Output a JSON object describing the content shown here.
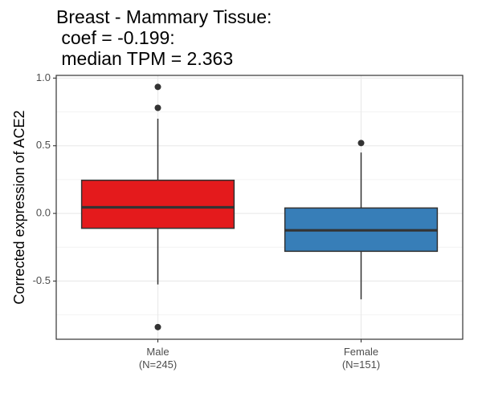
{
  "chart_data": {
    "type": "box",
    "title_lines": [
      "Breast - Mammary Tissue:",
      " coef = -0.199:",
      " median TPM = 2.363"
    ],
    "xlabel": "",
    "ylabel": "Corrected expression of ACE2",
    "ylim": [
      -0.93,
      1.02
    ],
    "y_ticks": [
      1.0,
      0.5,
      0.0,
      -0.5
    ],
    "y_tick_labels": [
      "1.0",
      "0.5",
      "0.0",
      "-0.5"
    ],
    "grid": true,
    "legend": "none",
    "categories": [
      {
        "label": "Male",
        "sublabel": "(N=245)",
        "color": "#E41A1C",
        "q1": -0.11,
        "median": 0.045,
        "q3": 0.245,
        "whisker_low": -0.525,
        "whisker_high": 0.7,
        "outliers": [
          0.935,
          0.78,
          -0.84
        ]
      },
      {
        "label": "Female",
        "sublabel": "(N=151)",
        "color": "#377EB8",
        "q1": -0.28,
        "median": -0.125,
        "q3": 0.04,
        "whisker_low": -0.635,
        "whisker_high": 0.45,
        "outliers": [
          0.52
        ]
      }
    ]
  }
}
